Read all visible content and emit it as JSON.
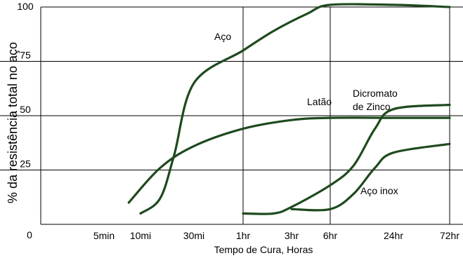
{
  "chart_data": {
    "type": "line",
    "title": "",
    "xlabel": "Tempo de Cura, Horas",
    "ylabel": "% da resistência total no aço",
    "x_tick_labels": [
      "5min",
      "10mi",
      "30mi",
      "1hr",
      "3hr",
      "6hr",
      "24hr",
      "72hr"
    ],
    "y_ticks": [
      0,
      25,
      50,
      75,
      100
    ],
    "ylim": [
      0,
      100
    ],
    "x_scale": "log",
    "grid": true,
    "series": [
      {
        "name": "Aço",
        "color": "#1e4a1e",
        "points": [
          {
            "x": "10mi",
            "y": 5
          },
          {
            "x": "15mi",
            "y": 12
          },
          {
            "x": "20mi",
            "y": 32
          },
          {
            "x": "30mi",
            "y": 65
          },
          {
            "x": "1hr",
            "y": 80
          },
          {
            "x": "2hr",
            "y": 89
          },
          {
            "x": "4hr",
            "y": 97
          },
          {
            "x": "6hr",
            "y": 101
          },
          {
            "x": "24hr",
            "y": 101
          },
          {
            "x": "72hr",
            "y": 100
          }
        ]
      },
      {
        "name": "Latão",
        "color": "#1e4a1e",
        "points": [
          {
            "x": "8mi",
            "y": 10
          },
          {
            "x": "15mi",
            "y": 26
          },
          {
            "x": "30mi",
            "y": 36
          },
          {
            "x": "1hr",
            "y": 44
          },
          {
            "x": "3hr",
            "y": 48
          },
          {
            "x": "6hr",
            "y": 49
          },
          {
            "x": "24hr",
            "y": 49
          },
          {
            "x": "72hr",
            "y": 49
          }
        ]
      },
      {
        "name": "Dicromato de Zinco",
        "color": "#1e4a1e",
        "points": [
          {
            "x": "1hr",
            "y": 5
          },
          {
            "x": "2hr",
            "y": 5
          },
          {
            "x": "3hr",
            "y": 8
          },
          {
            "x": "6hr",
            "y": 18
          },
          {
            "x": "10hr",
            "y": 27
          },
          {
            "x": "16hr",
            "y": 44
          },
          {
            "x": "24hr",
            "y": 53
          },
          {
            "x": "72hr",
            "y": 55
          }
        ]
      },
      {
        "name": "Aço inox",
        "color": "#1e4a1e",
        "points": [
          {
            "x": "3hr",
            "y": 7
          },
          {
            "x": "6hr",
            "y": 7
          },
          {
            "x": "10hr",
            "y": 14
          },
          {
            "x": "16hr",
            "y": 26
          },
          {
            "x": "24hr",
            "y": 33
          },
          {
            "x": "72hr",
            "y": 37
          }
        ]
      }
    ],
    "annotations": [
      {
        "text": "Aço"
      },
      {
        "text": "Latão"
      },
      {
        "text": "Dicromato"
      },
      {
        "text": "de Zinco"
      },
      {
        "text": "Aço inox"
      }
    ]
  }
}
